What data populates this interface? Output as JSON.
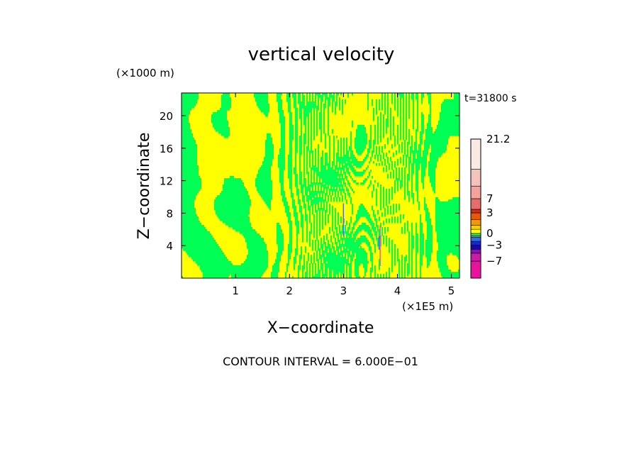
{
  "chart_data": {
    "type": "heatmap",
    "title": "vertical velocity",
    "time_label": "t=31800 s",
    "xlabel": "X−coordinate",
    "ylabel": "Z−coordinate",
    "x_unit_label": "(×1E5 m)",
    "y_unit_label": "(×1000 m)",
    "xlim": [
      0,
      5.15
    ],
    "ylim": [
      0,
      22.8
    ],
    "x_ticks": [
      1,
      2,
      3,
      4,
      5
    ],
    "y_ticks": [
      4,
      8,
      12,
      16,
      20
    ],
    "field_description": "filled contour of vertical velocity; dominated by two levels, near-zero positive (yellow) and near-zero negative (green), with narrow vertical streaks of stronger up/down motion near x=3 and x=3.7",
    "colorbar": {
      "tick_labels": [
        "21.2",
        "7",
        "3",
        "0",
        "−3",
        "−7"
      ],
      "tick_values": [
        21.2,
        7,
        3,
        0,
        -3,
        -7
      ],
      "levels": [
        {
          "from": -9.0,
          "to": -7.0,
          "color": "#e8129e"
        },
        {
          "from": -7.0,
          "to": -5.0,
          "color": "#cc1aa8"
        },
        {
          "from": -5.0,
          "to": -4.0,
          "color": "#8a0fb0"
        },
        {
          "from": -4.0,
          "to": -3.0,
          "color": "#1a0a9e"
        },
        {
          "from": -3.0,
          "to": -2.0,
          "color": "#1428d8"
        },
        {
          "from": -2.0,
          "to": -1.0,
          "color": "#2a70ee"
        },
        {
          "from": -1.0,
          "to": -0.6,
          "color": "#18c8e6"
        },
        {
          "from": -0.6,
          "to": 0.0,
          "color": "#00ff55"
        },
        {
          "from": 0.0,
          "to": 0.6,
          "color": "#ffff00"
        },
        {
          "from": 0.6,
          "to": 1.2,
          "color": "#f7d000"
        },
        {
          "from": 1.2,
          "to": 2.0,
          "color": "#ef9a00"
        },
        {
          "from": 2.0,
          "to": 3.0,
          "color": "#e85a00"
        },
        {
          "from": 3.0,
          "to": 4.0,
          "color": "#d42a1a"
        },
        {
          "from": 4.0,
          "to": 7.0,
          "color": "#e66e6a"
        },
        {
          "from": 7.0,
          "to": 10.0,
          "color": "#f4a39c"
        },
        {
          "from": 10.0,
          "to": 14.0,
          "color": "#f6c3bc"
        },
        {
          "from": 14.0,
          "to": 21.2,
          "color": "#fbe9e4"
        }
      ]
    },
    "contour_interval_label": "CONTOUR INTERVAL = 6.000E−01"
  },
  "colors": {
    "positive_weak": "#ffff00",
    "negative_weak": "#00ff55",
    "frame": "#000000"
  }
}
